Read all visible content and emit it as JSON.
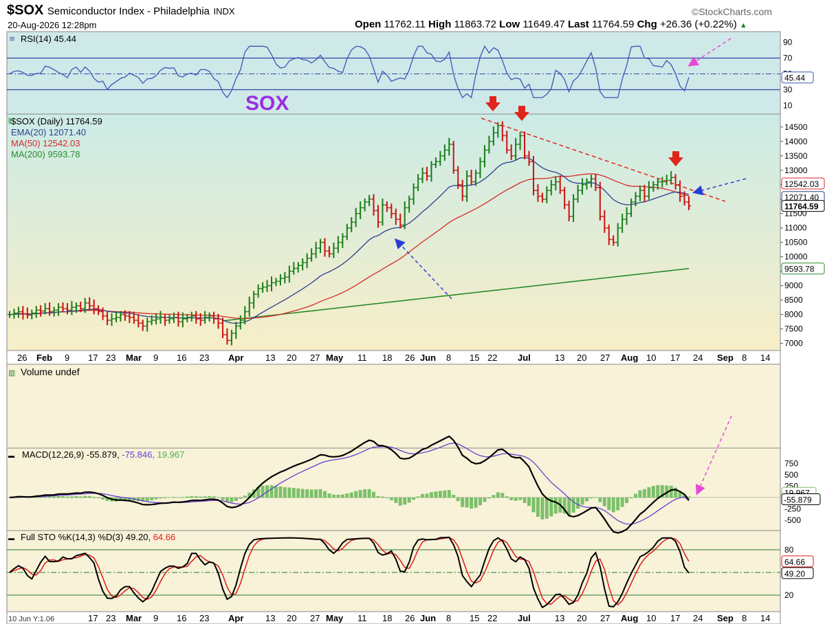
{
  "header": {
    "symbol": "$SOX",
    "name": "Semiconductor Index - Philadelphia",
    "exchange": "INDX",
    "date": "20-Aug-2026 12:28pm",
    "watermark": "©StockCharts.com",
    "open_label": "Open",
    "open": "11762.11",
    "high_label": "High",
    "high": "11863.72",
    "low_label": "Low",
    "low": "11649.47",
    "last_label": "Last",
    "last": "11764.59",
    "chg_label": "Chg",
    "chg": "+26.36 (+0.22%)"
  },
  "big_label": "SOX",
  "footer_note": "10 Jun Y:1.06",
  "colors": {
    "panel_bg": "#f7f2d8",
    "price_bg_top": "#ccebe6",
    "price_bg_bottom": "#f7eec8",
    "rsi_bg": "#cfe8e8",
    "up_bar": "#1a7d1a",
    "down_bar": "#cc1111",
    "ema20": "#2c3f8f",
    "ma50": "#d62a2a",
    "ma200": "#2a8a2a",
    "rsi_line": "#3b55b8",
    "macd_line": "#000000",
    "macd_signal": "#6a3fd0",
    "macd_hist": "#7cc06a",
    "sto_k": "#000000",
    "sto_d": "#e01a1a",
    "annot_red": "#e0261b",
    "annot_blue": "#2a3ed8",
    "annot_pink": "#e84ad8",
    "sox_label": "#9a2ce6"
  },
  "panels": {
    "rsi": {
      "label": "RSI(14) 45.44",
      "ticks": [
        "90",
        "70",
        "50",
        "30",
        "10"
      ],
      "value_box": "45.44"
    },
    "price": {
      "legend": [
        {
          "text": "$SOX (Daily) 11764.59",
          "color": "#000000"
        },
        {
          "text": "EMA(20) 12071.40",
          "color": "#2c3f8f"
        },
        {
          "text": "MA(50) 12542.03",
          "color": "#d62a2a"
        },
        {
          "text": "MA(200) 9593.78",
          "color": "#2a8a2a"
        }
      ],
      "ticks": [
        "14500",
        "14000",
        "13500",
        "13000",
        "12500",
        "12000",
        "11500",
        "11000",
        "10500",
        "10000",
        "9500",
        "9000",
        "8500",
        "8000",
        "7500",
        "7000"
      ],
      "value_boxes": [
        "12542.03",
        "12071.40",
        "11764.59",
        "9593.78"
      ]
    },
    "volume": {
      "label": "Volume undef"
    },
    "macd": {
      "label": "MACD(12,26,9)",
      "macd_value": "-55.879",
      "signal_value": "-75.846",
      "hist_value": "19.967",
      "ticks": [
        "750",
        "500",
        "250",
        "0",
        "-250",
        "-500"
      ],
      "value_boxes": [
        "19.967",
        "-55.879"
      ]
    },
    "sto": {
      "label": "Full STO %K(14,3) %D(3)",
      "k_value": "49.20",
      "d_value": "64.66",
      "ticks": [
        "80",
        "50",
        "20"
      ],
      "value_boxes": [
        "64.66",
        "49.20"
      ]
    }
  },
  "xaxis_labels": [
    "26",
    "Feb",
    "9",
    "17",
    "23",
    "Mar",
    "9",
    "16",
    "23",
    "Apr",
    "13",
    "20",
    "27",
    "May",
    "11",
    "18",
    "26",
    "Jun",
    "8",
    "15",
    "22",
    "Jul",
    "13",
    "20",
    "27",
    "Aug",
    "10",
    "17",
    "24",
    "Sep",
    "8",
    "14"
  ],
  "xaxis_labels_bottom": [
    "17",
    "23",
    "Mar",
    "9",
    "16",
    "23",
    "Apr",
    "13",
    "20",
    "27",
    "May",
    "11",
    "18",
    "26",
    "Jun",
    "8",
    "15",
    "22",
    "Jul",
    "13",
    "20",
    "27",
    "Aug",
    "10",
    "17",
    "24",
    "Sep",
    "8",
    "14"
  ],
  "chart_data": {
    "type": "line",
    "title": "$SOX Semiconductor Index - Philadelphia",
    "ylabel": "",
    "x_units": "trading days (approx)",
    "ylim": [
      6800,
      14900
    ],
    "grid": false,
    "series": [
      {
        "name": "$SOX (Daily) 11764.59",
        "kind": "ohlc",
        "close": [
          8000,
          8050,
          8100,
          8020,
          7980,
          8050,
          8150,
          8120,
          8200,
          8100,
          8150,
          8250,
          8200,
          8150,
          8250,
          8300,
          8200,
          8400,
          8300,
          8200,
          8100,
          7950,
          7800,
          7850,
          7900,
          8000,
          7950,
          7900,
          7800,
          7700,
          7600,
          7750,
          7800,
          7850,
          7900,
          7800,
          7850,
          7900,
          7750,
          7850,
          7900,
          7950,
          7850,
          7800,
          7900,
          7950,
          7850,
          7700,
          7300,
          7100,
          7350,
          7600,
          7800,
          8100,
          8400,
          8700,
          8900,
          8950,
          9000,
          9100,
          9150,
          9250,
          9300,
          9500,
          9600,
          9700,
          9800,
          9950,
          10100,
          10300,
          10500,
          10200,
          10100,
          10300,
          10500,
          10700,
          11000,
          11200,
          11500,
          11700,
          11900,
          12000,
          11600,
          11200,
          11800,
          11700,
          11500,
          11300,
          11100,
          11700,
          12000,
          12400,
          12700,
          12900,
          12800,
          13200,
          13300,
          13500,
          13700,
          13900,
          13000,
          12500,
          12100,
          12800,
          12600,
          12900,
          13300,
          13700,
          14000,
          14300,
          14550,
          14200,
          13700,
          13500,
          13900,
          14200,
          13500,
          13300,
          12300,
          12100,
          12000,
          12300,
          12500,
          12600,
          12300,
          11800,
          11400,
          12000,
          12300,
          12500,
          12600,
          12700,
          12400,
          11400,
          11000,
          10600,
          10500,
          11000,
          11300,
          11500,
          11900,
          12100,
          12300,
          12100,
          12400,
          12500,
          12600,
          12600,
          12650,
          12750,
          12500,
          12100,
          11900,
          11764.59
        ]
      },
      {
        "name": "EMA(20) 12071.40",
        "kind": "line",
        "last": 12071.4
      },
      {
        "name": "MA(50) 12542.03",
        "kind": "line",
        "last": 12542.03
      },
      {
        "name": "MA(200) 9593.78",
        "kind": "line",
        "last": 9593.78
      }
    ],
    "rsi": {
      "name": "RSI(14) 45.44",
      "ylim": [
        0,
        100
      ],
      "last": 45.44,
      "levels": [
        70,
        50,
        30
      ]
    },
    "macd": {
      "name": "MACD(12,26,9)",
      "macd_last": -55.879,
      "signal_last": -75.846,
      "hist_last": 19.967,
      "ylim": [
        -700,
        1000
      ]
    },
    "stochastic": {
      "name": "Full STO %K(14,3) %D(3)",
      "k_last": 49.2,
      "d_last": 64.66,
      "ylim": [
        0,
        100
      ],
      "levels": [
        80,
        50,
        20
      ]
    }
  }
}
